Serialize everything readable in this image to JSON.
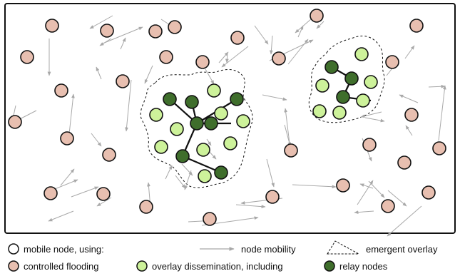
{
  "legend": {
    "mobile_node": "mobile node, using:",
    "node_mobility": "node mobility",
    "emergent_overlay": "emergent overlay",
    "controlled_flooding": "controlled flooding",
    "overlay_dissemination": "overlay dissemination, including",
    "relay_nodes": "relay nodes"
  },
  "colors": {
    "flooding_node": "#e8bfb0",
    "overlay_node": "#cdf29a",
    "relay_node": "#3f6e2c",
    "node_stroke": "#111111",
    "mobility_arrow": "#a8a8a8",
    "overlay_boundary": "#111111",
    "relay_link": "#111111"
  },
  "icons": {
    "mobile_node": "white-circle-icon",
    "node_mobility": "gray-arrow-icon",
    "emergent_overlay": "dashed-triangle-icon",
    "controlled_flooding": "pink-circle-icon",
    "overlay_dissemination": "light-green-circle-icon",
    "relay_nodes": "dark-green-circle-icon"
  }
}
